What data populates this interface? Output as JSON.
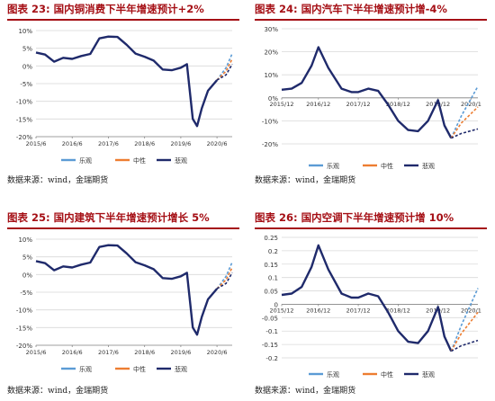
{
  "colors": {
    "title": "#a50f15",
    "optimistic": "#5b9bd5",
    "neutral": "#ed7d31",
    "pessimistic": "#1f2a6b"
  },
  "panels": [
    {
      "title": "图表 23: 国内铜消费下半年增速预计+2%",
      "source": "数据来源：wind，金瑞期货"
    },
    {
      "title": "图表 24: 国内汽车下半年增速预计增-4%",
      "source": "数据来源：wind，金瑞期货"
    },
    {
      "title": "图表 25: 国内建筑下半年增速预计增长 5%",
      "source": "数据来源：wind，金瑞期货"
    },
    {
      "title": "图表 26: 国内空调下半年增速预计增 10%",
      "source": "数据来源：wind，金瑞期货"
    }
  ],
  "chart_data": [
    {
      "type": "line",
      "x_ticks": [
        "2015/6",
        "2016/6",
        "2017/6",
        "2018/6",
        "2019/6",
        "2020/6"
      ],
      "y_ticks": [
        "10%",
        "5%",
        "0%",
        "-5%",
        "-10%",
        "-15%",
        "-20%"
      ],
      "ylim": [
        -20,
        10
      ],
      "grid": "horizontal",
      "legend": [
        "乐观",
        "中性",
        "悲观"
      ],
      "x": [
        2015.5,
        2015.75,
        2016.0,
        2016.25,
        2016.5,
        2016.75,
        2017.0,
        2017.25,
        2017.5,
        2017.75,
        2018.0,
        2018.25,
        2018.5,
        2018.75,
        2019.0,
        2019.25,
        2019.5,
        2019.67,
        2019.83,
        2019.95,
        2020.08,
        2020.25,
        2020.5
      ],
      "history": [
        3.8,
        3.2,
        1.2,
        2.3,
        2.0,
        2.8,
        3.4,
        7.8,
        8.3,
        8.2,
        6.0,
        3.5,
        2.6,
        1.5,
        -1.0,
        -1.2,
        -0.5,
        0.5,
        -15.0,
        -17.0,
        -12.0,
        -7.0,
        -4.0
      ],
      "series": [
        {
          "name": "乐观",
          "x": [
            2020.5,
            2020.75,
            2020.92
          ],
          "values": [
            -4.0,
            -0.5,
            3.5
          ]
        },
        {
          "name": "中性",
          "x": [
            2020.5,
            2020.75,
            2020.92
          ],
          "values": [
            -4.0,
            -1.5,
            2.0
          ]
        },
        {
          "name": "悲观",
          "x": [
            2020.5,
            2020.75,
            2020.92
          ],
          "values": [
            -4.0,
            -2.5,
            0.5
          ]
        }
      ]
    },
    {
      "type": "line",
      "x_ticks": [
        "2015/12",
        "2016/12",
        "2017/12",
        "2018/12",
        "2019/12",
        "2020/1"
      ],
      "y_ticks": [
        "30%",
        "20%",
        "10%",
        "0%",
        "-10%",
        "-20%"
      ],
      "ylim": [
        -20,
        30
      ],
      "grid": "horizontal",
      "legend": [
        "乐观",
        "中性",
        "悲观"
      ],
      "x": [
        2016.0,
        2016.25,
        2016.5,
        2016.75,
        2016.92,
        2017.17,
        2017.5,
        2017.75,
        2017.92,
        2018.17,
        2018.42,
        2018.67,
        2018.92,
        2019.17,
        2019.42,
        2019.67,
        2019.92,
        2020.08,
        2020.25
      ],
      "history": [
        3.5,
        4.0,
        6.5,
        14.0,
        22.0,
        13.0,
        4.0,
        2.5,
        2.5,
        4.0,
        3.0,
        -3.0,
        -10.0,
        -14.0,
        -14.5,
        -10.0,
        -1.0,
        -12.0,
        -17.5
      ],
      "series": [
        {
          "name": "乐观",
          "x": [
            2020.25,
            2020.5,
            2020.92
          ],
          "values": [
            -17.5,
            -8.0,
            5.0
          ]
        },
        {
          "name": "中性",
          "x": [
            2020.25,
            2020.5,
            2020.92
          ],
          "values": [
            -17.5,
            -11.0,
            -4.0
          ]
        },
        {
          "name": "悲观",
          "x": [
            2020.25,
            2020.5,
            2020.92
          ],
          "values": [
            -17.5,
            -15.5,
            -13.5
          ]
        }
      ]
    },
    {
      "type": "line",
      "x_ticks": [
        "2015/6",
        "2016/6",
        "2017/6",
        "2018/6",
        "2019/6",
        "2020/6"
      ],
      "y_ticks": [
        "10%",
        "5%",
        "0%",
        "-5%",
        "-10%",
        "-15%",
        "-20%"
      ],
      "ylim": [
        -20,
        10
      ],
      "grid": "horizontal",
      "legend": [
        "乐观",
        "中性",
        "悲观"
      ],
      "x": [
        2015.5,
        2015.75,
        2016.0,
        2016.25,
        2016.5,
        2016.75,
        2017.0,
        2017.25,
        2017.5,
        2017.75,
        2018.0,
        2018.25,
        2018.5,
        2018.75,
        2019.0,
        2019.25,
        2019.5,
        2019.67,
        2019.83,
        2019.95,
        2020.08,
        2020.25,
        2020.5
      ],
      "history": [
        3.8,
        3.2,
        1.2,
        2.3,
        2.0,
        2.8,
        3.4,
        7.8,
        8.3,
        8.2,
        6.0,
        3.5,
        2.6,
        1.5,
        -1.0,
        -1.2,
        -0.5,
        0.5,
        -15.0,
        -17.0,
        -12.0,
        -7.0,
        -4.0
      ],
      "series": [
        {
          "name": "乐观",
          "x": [
            2020.5,
            2020.75,
            2020.92
          ],
          "values": [
            -4.0,
            -0.5,
            3.5
          ]
        },
        {
          "name": "中性",
          "x": [
            2020.5,
            2020.75,
            2020.92
          ],
          "values": [
            -4.0,
            -1.5,
            2.0
          ]
        },
        {
          "name": "悲观",
          "x": [
            2020.5,
            2020.75,
            2020.92
          ],
          "values": [
            -4.0,
            -2.5,
            0.5
          ]
        }
      ]
    },
    {
      "type": "line",
      "x_ticks": [
        "2015/12",
        "2016/12",
        "2017/12",
        "2018/12",
        "2019/12",
        "2020/1"
      ],
      "y_ticks": [
        "0.25",
        "0.2",
        "0.15",
        "0.1",
        "0.05",
        "0",
        "-0.05",
        "-0.1",
        "-0.15",
        "-0.2"
      ],
      "ylim": [
        -0.2,
        0.25
      ],
      "grid": "horizontal",
      "legend": [
        "乐观",
        "中性",
        "悲观"
      ],
      "x": [
        2016.0,
        2016.25,
        2016.5,
        2016.75,
        2016.92,
        2017.17,
        2017.5,
        2017.75,
        2017.92,
        2018.17,
        2018.42,
        2018.67,
        2018.92,
        2019.17,
        2019.42,
        2019.67,
        2019.92,
        2020.08,
        2020.25
      ],
      "history": [
        0.035,
        0.04,
        0.065,
        0.14,
        0.22,
        0.13,
        0.04,
        0.025,
        0.025,
        0.04,
        0.03,
        -0.03,
        -0.1,
        -0.14,
        -0.145,
        -0.1,
        -0.01,
        -0.12,
        -0.175
      ],
      "series": [
        {
          "name": "乐观",
          "x": [
            2020.25,
            2020.5,
            2020.92
          ],
          "values": [
            -0.175,
            -0.08,
            0.06
          ]
        },
        {
          "name": "中性",
          "x": [
            2020.25,
            2020.5,
            2020.92
          ],
          "values": [
            -0.175,
            -0.11,
            -0.03
          ]
        },
        {
          "name": "悲观",
          "x": [
            2020.25,
            2020.5,
            2020.92
          ],
          "values": [
            -0.175,
            -0.155,
            -0.135
          ]
        }
      ]
    }
  ]
}
